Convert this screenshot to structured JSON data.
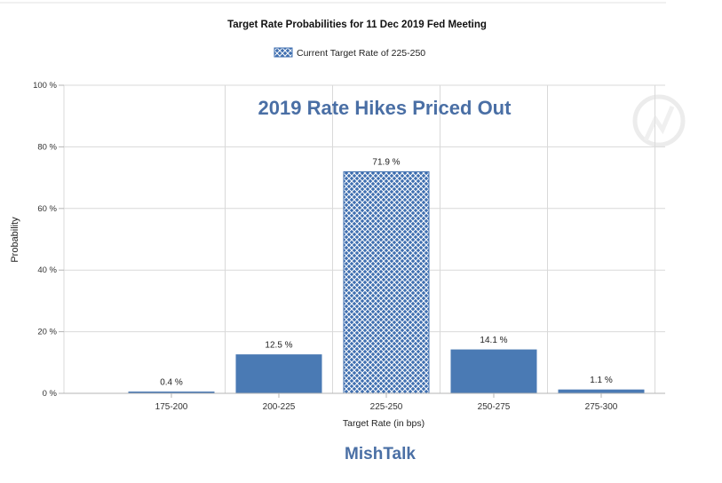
{
  "chart_data": {
    "type": "bar",
    "title": "Target Rate Probabilities for 11 Dec 2019 Fed Meeting",
    "annotation": "2019 Rate Hikes Priced Out",
    "footer": "MishTalk",
    "legend": {
      "label": "Current Target Rate of 225-250",
      "placement": "top-center"
    },
    "xlabel": "Target Rate (in bps)",
    "ylabel": "Probability",
    "categories": [
      "175-200",
      "200-225",
      "225-250",
      "250-275",
      "275-300"
    ],
    "values": [
      0.4,
      12.5,
      71.9,
      14.1,
      1.1
    ],
    "value_labels": [
      "0.4 %",
      "12.5 %",
      "71.9 %",
      "14.1 %",
      "1.1 %"
    ],
    "highlight_category": "225-250",
    "ylim": [
      0,
      100
    ],
    "yticks": [
      0,
      20,
      40,
      60,
      80,
      100
    ],
    "ytick_labels": [
      "0 %",
      "20 %",
      "40 %",
      "60 %",
      "80 %",
      "100 %"
    ],
    "grid": true,
    "colors": {
      "bar": "#4a7ab4",
      "highlight_bar": "#3f6fb0",
      "hatch": "#ffffff",
      "annotation": "#4a6fa5",
      "footer": "#4a6fa5",
      "grid": "#d9d9d9"
    }
  }
}
